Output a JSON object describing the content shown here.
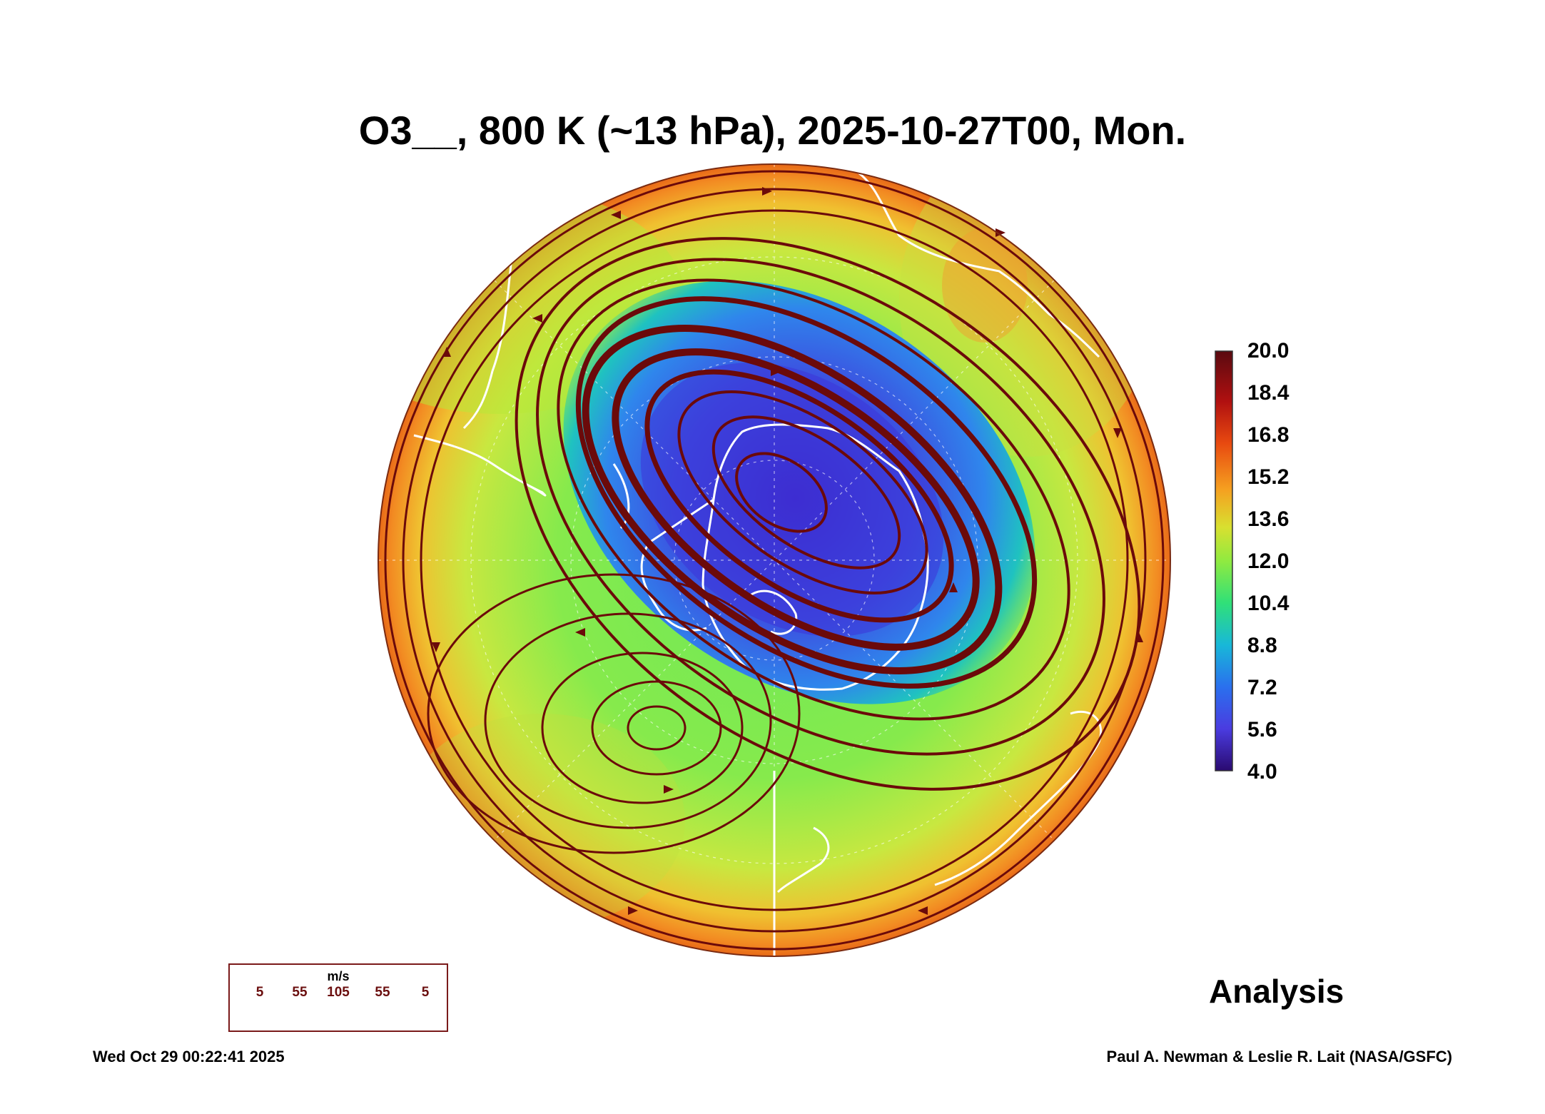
{
  "title": "O3__, 800 K (~13 hPa), 2025-10-27T00, Mon.",
  "colorbar": {
    "labels": [
      "20.0",
      "18.4",
      "16.8",
      "15.2",
      "13.6",
      "12.0",
      "10.4",
      "8.8",
      "7.2",
      "5.6",
      "4.0"
    ],
    "min": 4.0,
    "max": 20.0
  },
  "wind_legend": {
    "unit": "m/s",
    "speeds": [
      "5",
      "55",
      "105",
      "55",
      "5"
    ]
  },
  "label_analysis": "Analysis",
  "timestamp": "Wed Oct 29 00:22:41 2025",
  "credit": "Paul A. Newman & Leslie R. Lait (NASA/GSFC)",
  "colors": {
    "streamline": "#6b0a0a",
    "coastline": "#ffffff",
    "vortex_core": "#3a2fd8"
  }
}
